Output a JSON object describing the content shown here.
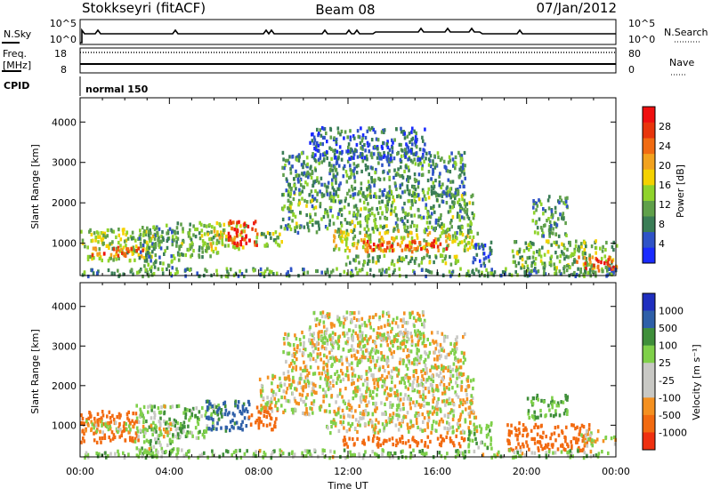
{
  "header": {
    "station": "Stokkseyri (fitACF)",
    "beam": "Beam 08",
    "date": "07/Jan/2012"
  },
  "strips": {
    "nsky_label": "N.Sky",
    "nsearch_label": "N.Search",
    "nsky_ticks": [
      "10^5",
      "10^0"
    ],
    "nsearch_ticks": [
      "10^5",
      "10^0"
    ],
    "freq_label_1": "Freq.",
    "freq_label_2": "[MHz]",
    "freq_ticks": [
      "18",
      "8"
    ],
    "nave_label": "Nave",
    "nave_ticks": [
      "80",
      "0"
    ],
    "cpid_label": "CPID",
    "cpid_text": "normal 150"
  },
  "colors": {
    "power_scale": [
      "#1a2bff",
      "#2f53c7",
      "#3a7d56",
      "#5fa04a",
      "#8fd32b",
      "#f4d200",
      "#f2a21e",
      "#f16b12",
      "#e8350c",
      "#ef0f0f"
    ],
    "velocity_scale": [
      "#1f2fbf",
      "#2e5fa8",
      "#3f8f3a",
      "#7fd04a",
      "#c8c8c4",
      "#c8c8c4",
      "#f49020",
      "#f26a10",
      "#ef3010",
      "#e80808"
    ]
  },
  "chart_data": [
    {
      "type": "heatmap",
      "name": "power",
      "ylabel": "Slant Range [km]",
      "yticks": [
        "1000",
        "2000",
        "3000",
        "4000"
      ],
      "ylim": [
        200,
        4600
      ],
      "xlim": [
        0,
        24
      ],
      "colorbar_label": "Power [dB]",
      "colorbar_ticks": [
        "4",
        "8",
        "12",
        "16",
        "20",
        "24",
        "28"
      ],
      "colorbar_range": [
        0,
        32
      ],
      "bands": [
        {
          "t0": 0.0,
          "t1": 3.6,
          "r0": 600,
          "r1": 1400,
          "v": 14
        },
        {
          "t0": 0.5,
          "t1": 2.8,
          "r0": 700,
          "r1": 950,
          "v": 24
        },
        {
          "t0": 2.6,
          "t1": 4.4,
          "r0": 250,
          "r1": 1550,
          "v": 10
        },
        {
          "t0": 4.3,
          "t1": 6.2,
          "r0": 700,
          "r1": 1550,
          "v": 12
        },
        {
          "t0": 5.6,
          "t1": 7.4,
          "r0": 900,
          "r1": 1550,
          "v": 16
        },
        {
          "t0": 6.6,
          "t1": 7.9,
          "r0": 950,
          "r1": 1600,
          "v": 28
        },
        {
          "t0": 7.8,
          "t1": 9.0,
          "r0": 950,
          "r1": 1350,
          "v": 12
        },
        {
          "t0": 8.9,
          "t1": 17.6,
          "r0": 1300,
          "r1": 2300,
          "v": 11
        },
        {
          "t0": 9.0,
          "t1": 17.2,
          "r0": 2200,
          "r1": 3300,
          "v": 9
        },
        {
          "t0": 10.2,
          "t1": 15.4,
          "r0": 3100,
          "r1": 3900,
          "v": 6
        },
        {
          "t0": 11.0,
          "t1": 17.8,
          "r0": 850,
          "r1": 1350,
          "v": 16
        },
        {
          "t0": 12.6,
          "t1": 16.4,
          "r0": 820,
          "r1": 1100,
          "v": 26
        },
        {
          "t0": 11.8,
          "t1": 17.2,
          "r0": 500,
          "r1": 750,
          "v": 12
        },
        {
          "t0": 17.5,
          "t1": 18.4,
          "r0": 450,
          "r1": 1100,
          "v": 6
        },
        {
          "t0": 19.3,
          "t1": 24.0,
          "r0": 400,
          "r1": 1100,
          "v": 12
        },
        {
          "t0": 20.2,
          "t1": 21.8,
          "r0": 1200,
          "r1": 2200,
          "v": 10
        },
        {
          "t0": 22.2,
          "t1": 24.0,
          "r0": 350,
          "r1": 700,
          "v": 26
        },
        {
          "t0": 0.0,
          "t1": 24.0,
          "r0": 220,
          "r1": 420,
          "v": 10
        }
      ]
    },
    {
      "type": "heatmap",
      "name": "velocity",
      "ylabel": "Slant Range [km]",
      "yticks": [
        "1000",
        "2000",
        "3000",
        "4000"
      ],
      "ylim": [
        200,
        4600
      ],
      "xlim": [
        0,
        24
      ],
      "xticks": [
        "00:00",
        "04:00",
        "08:00",
        "12:00",
        "16:00",
        "20:00",
        "00:00"
      ],
      "xlabel": "Time UT",
      "colorbar_label": "Velocity [m s⁻¹]",
      "colorbar_ticks": [
        "1000",
        "500",
        "100",
        "25",
        "-25",
        "-100",
        "-500",
        "-1000"
      ],
      "bands": [
        {
          "t0": 0.0,
          "t1": 2.6,
          "r0": 600,
          "r1": 1400,
          "v": -300
        },
        {
          "t0": 2.4,
          "t1": 4.4,
          "r0": 250,
          "r1": 1550,
          "v": 60
        },
        {
          "t0": 0.0,
          "t1": 4.2,
          "r0": 850,
          "r1": 1150,
          "v": 0
        },
        {
          "t0": 4.3,
          "t1": 6.2,
          "r0": 700,
          "r1": 1550,
          "v": 80
        },
        {
          "t0": 5.6,
          "t1": 7.6,
          "r0": 900,
          "r1": 1650,
          "v": 300
        },
        {
          "t0": 7.5,
          "t1": 8.8,
          "r0": 900,
          "r1": 1500,
          "v": -200
        },
        {
          "t0": 8.0,
          "t1": 17.6,
          "r0": 1300,
          "r1": 2300,
          "v": 0
        },
        {
          "t0": 9.0,
          "t1": 17.2,
          "r0": 2200,
          "r1": 3400,
          "v": 0
        },
        {
          "t0": 10.2,
          "t1": 15.4,
          "r0": 3100,
          "r1": 3900,
          "v": 0
        },
        {
          "t0": 11.0,
          "t1": 17.8,
          "r0": 850,
          "r1": 1350,
          "v": 0
        },
        {
          "t0": 11.6,
          "t1": 17.2,
          "r0": 500,
          "r1": 780,
          "v": -250
        },
        {
          "t0": 17.3,
          "t1": 18.4,
          "r0": 450,
          "r1": 1100,
          "v": 60
        },
        {
          "t0": 19.1,
          "t1": 22.8,
          "r0": 400,
          "r1": 1100,
          "v": -350
        },
        {
          "t0": 22.4,
          "t1": 24.0,
          "r0": 500,
          "r1": 900,
          "v": 0
        },
        {
          "t0": 20.0,
          "t1": 21.8,
          "r0": 1200,
          "r1": 1800,
          "v": 120
        },
        {
          "t0": 0.0,
          "t1": 24.0,
          "r0": 220,
          "r1": 420,
          "v": 60
        }
      ]
    }
  ]
}
